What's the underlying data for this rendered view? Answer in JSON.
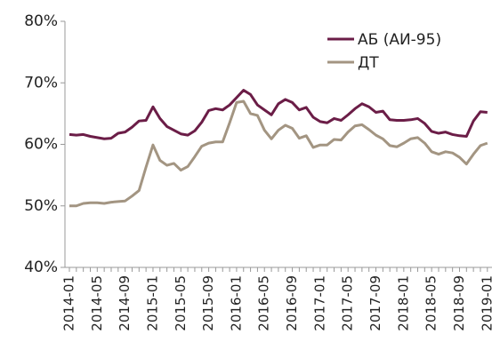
{
  "chart_data": {
    "type": "line",
    "categories": [
      "2014-01",
      null,
      null,
      null,
      "2014-05",
      null,
      null,
      null,
      "2014-09",
      null,
      null,
      null,
      "2015-01",
      null,
      null,
      null,
      "2015-05",
      null,
      null,
      null,
      "2015-09",
      null,
      null,
      null,
      "2016-01",
      null,
      null,
      null,
      "2016-05",
      null,
      null,
      null,
      "2016-09",
      null,
      null,
      null,
      "2017-01",
      null,
      null,
      null,
      "2017-05",
      null,
      null,
      null,
      "2017-09",
      null,
      null,
      null,
      "2018-01",
      null,
      null,
      null,
      "2018-05",
      null,
      null,
      null,
      "2018-09",
      null,
      null,
      null,
      "2019-01"
    ],
    "series": [
      {
        "name": "АБ (АИ-95)",
        "color": "#6b1d47",
        "values": [
          61.6,
          61.5,
          61.6,
          61.3,
          61.1,
          60.9,
          61.0,
          61.8,
          62.0,
          62.8,
          63.8,
          63.9,
          66.1,
          64.2,
          62.9,
          62.3,
          61.7,
          61.5,
          62.2,
          63.6,
          65.5,
          65.8,
          65.6,
          66.4,
          67.6,
          68.8,
          68.1,
          66.4,
          65.6,
          64.8,
          66.6,
          67.3,
          66.8,
          65.6,
          66.0,
          64.4,
          63.7,
          63.5,
          64.2,
          63.9,
          64.8,
          65.8,
          66.6,
          66.1,
          65.2,
          65.4,
          64.0,
          63.9,
          63.9,
          64.0,
          64.2,
          63.4,
          62.1,
          61.8,
          62.0,
          61.6,
          61.4,
          61.3,
          63.8,
          65.3,
          65.2
        ]
      },
      {
        "name": "ДТ",
        "color": "#a39582",
        "values": [
          50.0,
          50.0,
          50.4,
          50.5,
          50.5,
          50.4,
          50.6,
          50.7,
          50.8,
          51.6,
          52.5,
          56.3,
          59.9,
          57.4,
          56.6,
          56.9,
          55.8,
          56.4,
          58.0,
          59.7,
          60.2,
          60.4,
          60.4,
          63.5,
          66.8,
          67.0,
          65.0,
          64.7,
          62.3,
          60.9,
          62.3,
          63.1,
          62.6,
          61.0,
          61.4,
          59.5,
          59.9,
          59.9,
          60.8,
          60.7,
          62.0,
          63.0,
          63.2,
          62.4,
          61.5,
          60.9,
          59.8,
          59.6,
          60.2,
          60.9,
          61.1,
          60.2,
          58.8,
          58.4,
          58.8,
          58.6,
          57.9,
          56.8,
          58.4,
          59.8,
          60.2
        ]
      }
    ],
    "ylim": [
      40,
      80
    ],
    "yticks": [
      {
        "value": 40,
        "label": "40%"
      },
      {
        "value": 50,
        "label": "50%"
      },
      {
        "value": 60,
        "label": "60%"
      },
      {
        "value": 70,
        "label": "70%"
      },
      {
        "value": 80,
        "label": "80%"
      }
    ],
    "legend": "top-right"
  }
}
